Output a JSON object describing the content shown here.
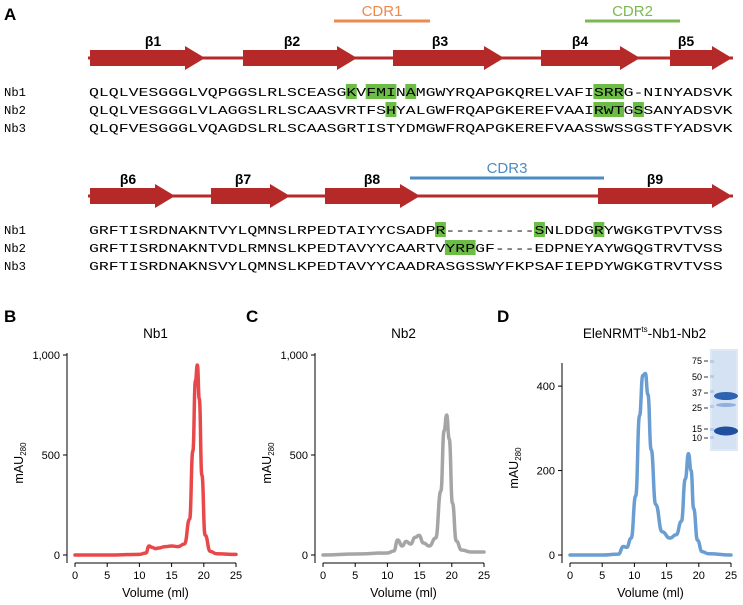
{
  "panels": {
    "A": "A",
    "B": "B",
    "C": "C",
    "D": "D"
  },
  "colors": {
    "arrow": "#b52a28",
    "highlight": "#6cbd45",
    "cdr1": "#ec8a4c",
    "cdr2": "#7cb851",
    "cdr3": "#4d8cc2",
    "nb1_trace": "#e8484a",
    "nb2_trace": "#a5a5a5",
    "complex_trace": "#6a9ed3"
  },
  "alignment": {
    "row1": {
      "seq_start_x": 89,
      "cdrs": [
        {
          "label": "CDR1",
          "color": "#ec8a4c"
        },
        {
          "label": "CDR2",
          "color": "#7cb851"
        }
      ],
      "strands": [
        "β1",
        "β2",
        "β3",
        "β4",
        "β5"
      ],
      "sequences": [
        {
          "name": "Nb1",
          "seq": "QLQLVESGGGLVQPGGSLRLSCEASGKVFMINAMGWYRQAPGKQRELVAFISRRG-NINYADSVK"
        },
        {
          "name": "Nb2",
          "seq": "QLQLVESGGGLVLAGGSLRLSCAASVRTFSHYALGWFRQAPGKEREFVAAIRWTGSSANYADSVK"
        },
        {
          "name": "Nb3",
          "seq": "QLQFVESGGGLVQAGDSLRLSCAASGRTISTYDMGWFRQAPGKEREFVAASSWSSGSTFYADSVK"
        }
      ]
    },
    "row2": {
      "cdrs": [
        {
          "label": "CDR3",
          "color": "#4d8cc2"
        }
      ],
      "strands": [
        "β6",
        "β7",
        "β8",
        "β9"
      ],
      "sequences": [
        {
          "name": "Nb1",
          "seq": "GRFTISRDNAKNTVYLQMNSLRPEDTAIYYCSADPR---------SNLDDGRYWGKGTPVTVSS"
        },
        {
          "name": "Nb2",
          "seq": "GRFTISRDNAKNTVDLRMNSLKPEDTAVYYCAARTVYRPGF----EDPNEYAYWGQGTRVTVSS"
        },
        {
          "name": "Nb3",
          "seq": "GRFTISRDNAKNSVYLQMNSLKPEDTAVYYCAADRASGSSWYFKPSAFIEPDYWGKGTRVTVSS"
        }
      ]
    }
  },
  "chart_data": [
    {
      "type": "line",
      "panel": "B",
      "title": "Nb1",
      "xlabel": "Volume (ml)",
      "ylabel": "mAU280",
      "xlim": [
        0,
        25
      ],
      "ylim": [
        0,
        1000
      ],
      "xticks": [
        0,
        5,
        10,
        15,
        20,
        25
      ],
      "yticks": [
        0,
        500,
        1000
      ],
      "ytick_labels": [
        "0",
        "500",
        "1,000"
      ],
      "color": "#e8484a",
      "series": [
        {
          "x": [
            0,
            5,
            10,
            11,
            11.5,
            12,
            12.5,
            13,
            14,
            15,
            16,
            17,
            17.8,
            18.3,
            18.7,
            19.0,
            19.3,
            19.7,
            20.2,
            21,
            22,
            25
          ],
          "y": [
            0,
            0,
            3,
            10,
            45,
            38,
            32,
            35,
            42,
            45,
            42,
            55,
            180,
            520,
            870,
            950,
            780,
            400,
            100,
            18,
            6,
            3
          ]
        }
      ]
    },
    {
      "type": "line",
      "panel": "C",
      "title": "Nb2",
      "xlabel": "Volume (ml)",
      "ylabel": "mAU280",
      "xlim": [
        0,
        25
      ],
      "ylim": [
        0,
        1000
      ],
      "xticks": [
        0,
        5,
        10,
        15,
        20,
        25
      ],
      "yticks": [
        0,
        500,
        1000
      ],
      "ytick_labels": [
        "0",
        "500",
        "1,000"
      ],
      "color": "#a5a5a5",
      "series": [
        {
          "x": [
            0,
            5,
            10,
            11,
            11.6,
            12.3,
            12.9,
            13.6,
            14.3,
            14.9,
            15.6,
            16.5,
            17.5,
            18.3,
            18.8,
            19.2,
            19.6,
            20.1,
            20.7,
            21.5,
            23,
            25
          ],
          "y": [
            0,
            5,
            10,
            20,
            75,
            45,
            68,
            55,
            88,
            98,
            60,
            45,
            85,
            320,
            620,
            700,
            580,
            260,
            70,
            25,
            15,
            15
          ]
        }
      ]
    },
    {
      "type": "line",
      "panel": "D",
      "title": "EleNRMTts-Nb1-Nb2",
      "xlabel": "Volume (ml)",
      "ylabel": "mAU280",
      "xlim": [
        0,
        25
      ],
      "ylim": [
        0,
        450
      ],
      "xticks": [
        0,
        5,
        10,
        15,
        20,
        25
      ],
      "yticks": [
        0,
        200,
        400
      ],
      "ytick_labels": [
        "0",
        "200",
        "400"
      ],
      "color": "#6a9ed3",
      "series": [
        {
          "x": [
            0,
            5,
            7.5,
            8.3,
            8.8,
            9.5,
            10.2,
            10.8,
            11.3,
            11.7,
            12.1,
            12.6,
            13.3,
            14.3,
            15.5,
            16.5,
            17.3,
            17.9,
            18.4,
            18.8,
            19.2,
            19.8,
            20.5,
            21.5,
            25
          ],
          "y": [
            0,
            0,
            2,
            20,
            18,
            40,
            140,
            330,
            425,
            430,
            380,
            250,
            120,
            55,
            40,
            48,
            80,
            180,
            240,
            200,
            110,
            35,
            8,
            3,
            0
          ]
        }
      ]
    }
  ],
  "gel": {
    "markers": [
      "75",
      "50",
      "37",
      "25",
      "15",
      "10"
    ]
  }
}
